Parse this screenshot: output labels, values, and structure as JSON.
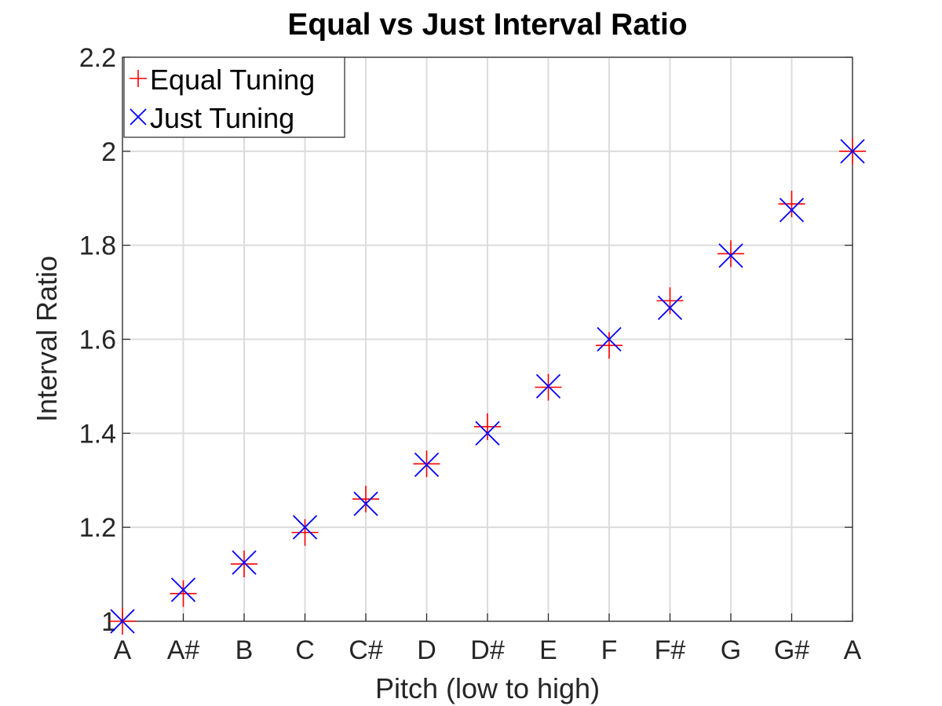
{
  "chart_data": {
    "type": "scatter",
    "title": "Equal vs Just Interval Ratio",
    "xlabel": "Pitch (low to high)",
    "ylabel": "Interval Ratio",
    "categories": [
      "A",
      "A#",
      "B",
      "C",
      "C#",
      "D",
      "D#",
      "E",
      "F",
      "F#",
      "G",
      "G#",
      "A"
    ],
    "ylim": [
      1,
      2.2
    ],
    "yticks": [
      "1",
      "1.2",
      "1.4",
      "1.6",
      "1.8",
      "2",
      "2.2"
    ],
    "grid": true,
    "legend_position": "top-left",
    "series": [
      {
        "name": "Equal Tuning",
        "marker": "plus",
        "color": "#ff0000",
        "values": [
          1.0,
          1.059,
          1.122,
          1.189,
          1.26,
          1.335,
          1.414,
          1.498,
          1.587,
          1.682,
          1.782,
          1.888,
          2.0
        ]
      },
      {
        "name": "Just Tuning",
        "marker": "x",
        "color": "#0000ff",
        "values": [
          1.0,
          1.067,
          1.125,
          1.2,
          1.25,
          1.333,
          1.4,
          1.5,
          1.6,
          1.667,
          1.778,
          1.875,
          2.0
        ]
      }
    ]
  }
}
